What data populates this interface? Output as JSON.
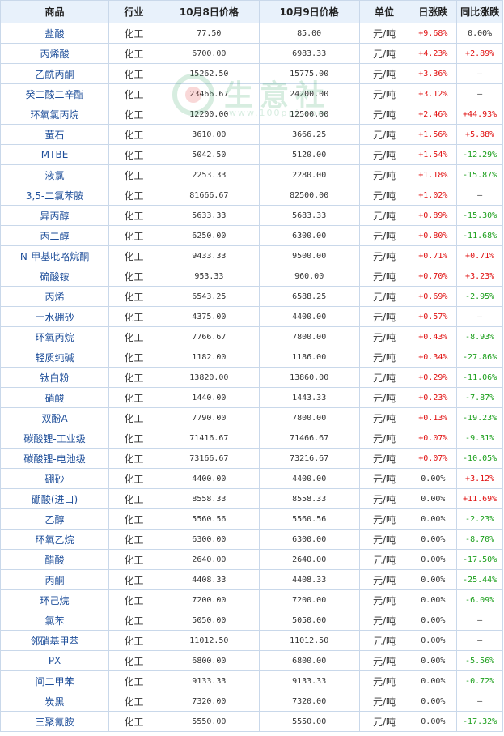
{
  "header": {
    "product": "商品",
    "industry": "行业",
    "price_oct8": "10月8日价格",
    "price_oct9": "10月9日价格",
    "unit": "单位",
    "daily_change": "日涨跌",
    "yoy_change": "同比涨跌"
  },
  "watermark": {
    "text": "生意社",
    "sub": "www.100ppi.com"
  },
  "rows": [
    {
      "name": "盐酸",
      "industry": "化工",
      "p8": "77.50",
      "p9": "85.00",
      "unit": "元/吨",
      "day": "+9.68%",
      "yoy": "0.00%"
    },
    {
      "name": "丙烯酸",
      "industry": "化工",
      "p8": "6700.00",
      "p9": "6983.33",
      "unit": "元/吨",
      "day": "+4.23%",
      "yoy": "+2.89%"
    },
    {
      "name": "乙酰丙酮",
      "industry": "化工",
      "p8": "15262.50",
      "p9": "15775.00",
      "unit": "元/吨",
      "day": "+3.36%",
      "yoy": "—"
    },
    {
      "name": "癸二酸二辛酯",
      "industry": "化工",
      "p8": "23466.67",
      "p9": "24200.00",
      "unit": "元/吨",
      "day": "+3.12%",
      "yoy": "—"
    },
    {
      "name": "环氧氯丙烷",
      "industry": "化工",
      "p8": "12200.00",
      "p9": "12500.00",
      "unit": "元/吨",
      "day": "+2.46%",
      "yoy": "+44.93%"
    },
    {
      "name": "萤石",
      "industry": "化工",
      "p8": "3610.00",
      "p9": "3666.25",
      "unit": "元/吨",
      "day": "+1.56%",
      "yoy": "+5.88%"
    },
    {
      "name": "MTBE",
      "industry": "化工",
      "p8": "5042.50",
      "p9": "5120.00",
      "unit": "元/吨",
      "day": "+1.54%",
      "yoy": "-12.29%"
    },
    {
      "name": "液氯",
      "industry": "化工",
      "p8": "2253.33",
      "p9": "2280.00",
      "unit": "元/吨",
      "day": "+1.18%",
      "yoy": "-15.87%"
    },
    {
      "name": "3,5-二氯苯胺",
      "industry": "化工",
      "p8": "81666.67",
      "p9": "82500.00",
      "unit": "元/吨",
      "day": "+1.02%",
      "yoy": "—"
    },
    {
      "name": "异丙醇",
      "industry": "化工",
      "p8": "5633.33",
      "p9": "5683.33",
      "unit": "元/吨",
      "day": "+0.89%",
      "yoy": "-15.30%"
    },
    {
      "name": "丙二醇",
      "industry": "化工",
      "p8": "6250.00",
      "p9": "6300.00",
      "unit": "元/吨",
      "day": "+0.80%",
      "yoy": "-11.68%"
    },
    {
      "name": "N-甲基吡咯烷酮",
      "industry": "化工",
      "p8": "9433.33",
      "p9": "9500.00",
      "unit": "元/吨",
      "day": "+0.71%",
      "yoy": "+0.71%"
    },
    {
      "name": "硫酸铵",
      "industry": "化工",
      "p8": "953.33",
      "p9": "960.00",
      "unit": "元/吨",
      "day": "+0.70%",
      "yoy": "+3.23%"
    },
    {
      "name": "丙烯",
      "industry": "化工",
      "p8": "6543.25",
      "p9": "6588.25",
      "unit": "元/吨",
      "day": "+0.69%",
      "yoy": "-2.95%"
    },
    {
      "name": "十水硼砂",
      "industry": "化工",
      "p8": "4375.00",
      "p9": "4400.00",
      "unit": "元/吨",
      "day": "+0.57%",
      "yoy": "—"
    },
    {
      "name": "环氧丙烷",
      "industry": "化工",
      "p8": "7766.67",
      "p9": "7800.00",
      "unit": "元/吨",
      "day": "+0.43%",
      "yoy": "-8.93%"
    },
    {
      "name": "轻质纯碱",
      "industry": "化工",
      "p8": "1182.00",
      "p9": "1186.00",
      "unit": "元/吨",
      "day": "+0.34%",
      "yoy": "-27.86%"
    },
    {
      "name": "钛白粉",
      "industry": "化工",
      "p8": "13820.00",
      "p9": "13860.00",
      "unit": "元/吨",
      "day": "+0.29%",
      "yoy": "-11.06%"
    },
    {
      "name": "硝酸",
      "industry": "化工",
      "p8": "1440.00",
      "p9": "1443.33",
      "unit": "元/吨",
      "day": "+0.23%",
      "yoy": "-7.87%"
    },
    {
      "name": "双酚A",
      "industry": "化工",
      "p8": "7790.00",
      "p9": "7800.00",
      "unit": "元/吨",
      "day": "+0.13%",
      "yoy": "-19.23%"
    },
    {
      "name": "碳酸锂-工业级",
      "industry": "化工",
      "p8": "71416.67",
      "p9": "71466.67",
      "unit": "元/吨",
      "day": "+0.07%",
      "yoy": "-9.31%"
    },
    {
      "name": "碳酸锂-电池级",
      "industry": "化工",
      "p8": "73166.67",
      "p9": "73216.67",
      "unit": "元/吨",
      "day": "+0.07%",
      "yoy": "-10.05%"
    },
    {
      "name": "硼砂",
      "industry": "化工",
      "p8": "4400.00",
      "p9": "4400.00",
      "unit": "元/吨",
      "day": "0.00%",
      "yoy": "+3.12%"
    },
    {
      "name": "硼酸(进口)",
      "industry": "化工",
      "p8": "8558.33",
      "p9": "8558.33",
      "unit": "元/吨",
      "day": "0.00%",
      "yoy": "+11.69%"
    },
    {
      "name": "乙醇",
      "industry": "化工",
      "p8": "5560.56",
      "p9": "5560.56",
      "unit": "元/吨",
      "day": "0.00%",
      "yoy": "-2.23%"
    },
    {
      "name": "环氧乙烷",
      "industry": "化工",
      "p8": "6300.00",
      "p9": "6300.00",
      "unit": "元/吨",
      "day": "0.00%",
      "yoy": "-8.70%"
    },
    {
      "name": "醋酸",
      "industry": "化工",
      "p8": "2640.00",
      "p9": "2640.00",
      "unit": "元/吨",
      "day": "0.00%",
      "yoy": "-17.50%"
    },
    {
      "name": "丙酮",
      "industry": "化工",
      "p8": "4408.33",
      "p9": "4408.33",
      "unit": "元/吨",
      "day": "0.00%",
      "yoy": "-25.44%"
    },
    {
      "name": "环己烷",
      "industry": "化工",
      "p8": "7200.00",
      "p9": "7200.00",
      "unit": "元/吨",
      "day": "0.00%",
      "yoy": "-6.09%"
    },
    {
      "name": "氯苯",
      "industry": "化工",
      "p8": "5050.00",
      "p9": "5050.00",
      "unit": "元/吨",
      "day": "0.00%",
      "yoy": "—"
    },
    {
      "name": "邻硝基甲苯",
      "industry": "化工",
      "p8": "11012.50",
      "p9": "11012.50",
      "unit": "元/吨",
      "day": "0.00%",
      "yoy": "—"
    },
    {
      "name": "PX",
      "industry": "化工",
      "p8": "6800.00",
      "p9": "6800.00",
      "unit": "元/吨",
      "day": "0.00%",
      "yoy": "-5.56%"
    },
    {
      "name": "间二甲苯",
      "industry": "化工",
      "p8": "9133.33",
      "p9": "9133.33",
      "unit": "元/吨",
      "day": "0.00%",
      "yoy": "-0.72%"
    },
    {
      "name": "炭黑",
      "industry": "化工",
      "p8": "7320.00",
      "p9": "7320.00",
      "unit": "元/吨",
      "day": "0.00%",
      "yoy": "—"
    },
    {
      "name": "三聚氰胺",
      "industry": "化工",
      "p8": "5550.00",
      "p9": "5550.00",
      "unit": "元/吨",
      "day": "0.00%",
      "yoy": "-17.32%"
    }
  ],
  "colors": {
    "up": "#e01010",
    "down": "#1a9e1a",
    "name_link": "#1f4f9a",
    "header_bg": "#e8f1fb",
    "border": "#c9d8ea"
  }
}
